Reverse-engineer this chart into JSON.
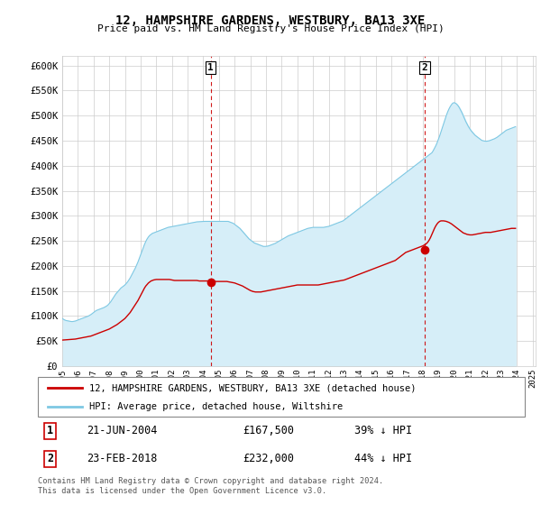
{
  "title": "12, HAMPSHIRE GARDENS, WESTBURY, BA13 3XE",
  "subtitle": "Price paid vs. HM Land Registry's House Price Index (HPI)",
  "ylim": [
    0,
    620000
  ],
  "yticks": [
    0,
    50000,
    100000,
    150000,
    200000,
    250000,
    300000,
    350000,
    400000,
    450000,
    500000,
    550000,
    600000
  ],
  "hpi_color": "#7ec8e3",
  "hpi_fill_color": "#d6eef8",
  "price_color": "#cc0000",
  "marker_color": "#cc0000",
  "grid_color": "#cccccc",
  "background_color": "#ffffff",
  "legend_label_price": "12, HAMPSHIRE GARDENS, WESTBURY, BA13 3XE (detached house)",
  "legend_label_hpi": "HPI: Average price, detached house, Wiltshire",
  "transaction1_date": "21-JUN-2004",
  "transaction1_price": "£167,500",
  "transaction1_hpi": "39% ↓ HPI",
  "transaction2_date": "23-FEB-2018",
  "transaction2_price": "£232,000",
  "transaction2_hpi": "44% ↓ HPI",
  "footer": "Contains HM Land Registry data © Crown copyright and database right 2024.\nThis data is licensed under the Open Government Licence v3.0.",
  "transaction1_year": 2004.47,
  "transaction2_year": 2018.12,
  "transaction1_price_val": 167500,
  "transaction2_price_val": 232000,
  "hpi_monthly": [
    95000,
    93500,
    92000,
    91000,
    90500,
    90000,
    89500,
    89000,
    89000,
    89500,
    90000,
    91000,
    92000,
    93000,
    94000,
    95000,
    96000,
    97000,
    98000,
    99000,
    100000,
    101500,
    103000,
    105000,
    107000,
    109000,
    111000,
    112000,
    113000,
    114000,
    115000,
    116000,
    117000,
    118500,
    120000,
    122000,
    125000,
    128000,
    132000,
    136000,
    140000,
    144000,
    147000,
    150000,
    153000,
    156000,
    158000,
    160000,
    162000,
    165000,
    168000,
    172000,
    176000,
    181000,
    186000,
    191000,
    196000,
    202000,
    208000,
    215000,
    222000,
    229000,
    236000,
    243000,
    249000,
    254000,
    258000,
    261000,
    263000,
    265000,
    266000,
    267000,
    268000,
    269000,
    270000,
    271000,
    272000,
    273000,
    274000,
    275000,
    276000,
    277000,
    277500,
    278000,
    278500,
    279000,
    279500,
    280000,
    280500,
    281000,
    281500,
    282000,
    282500,
    283000,
    283500,
    284000,
    284500,
    285000,
    285500,
    286000,
    286500,
    287000,
    287500,
    288000,
    288200,
    288400,
    288600,
    288800,
    289000,
    289000,
    289000,
    289000,
    289000,
    289000,
    289000,
    289000,
    289000,
    289000,
    289000,
    289000,
    289000,
    289000,
    289000,
    289000,
    289000,
    289000,
    289000,
    289000,
    288000,
    287000,
    286000,
    285000,
    283000,
    281000,
    279000,
    277000,
    275000,
    272000,
    269000,
    266000,
    263000,
    260000,
    257000,
    254000,
    252000,
    250000,
    248000,
    246000,
    245000,
    244000,
    243000,
    242000,
    241000,
    240000,
    239000,
    239000,
    239000,
    239500,
    240000,
    241000,
    242000,
    243000,
    244000,
    245000,
    246500,
    248000,
    249500,
    251000,
    252500,
    254000,
    255500,
    257000,
    258500,
    260000,
    261000,
    262000,
    263000,
    264000,
    265000,
    266000,
    267000,
    268000,
    269000,
    270000,
    271000,
    272000,
    273000,
    274000,
    275000,
    275500,
    276000,
    276500,
    277000,
    277000,
    277000,
    277000,
    277000,
    277000,
    277000,
    277000,
    277000,
    277500,
    278000,
    278500,
    279000,
    280000,
    281000,
    282000,
    283000,
    284000,
    285000,
    286000,
    287000,
    288000,
    289000,
    290000,
    292000,
    294000,
    296000,
    298000,
    300000,
    302000,
    304000,
    306000,
    308000,
    310000,
    312000,
    314000,
    316000,
    318000,
    320000,
    322000,
    324000,
    326000,
    328000,
    330000,
    332000,
    334000,
    336000,
    338000,
    340000,
    342000,
    344000,
    346000,
    348000,
    350000,
    352000,
    354000,
    356000,
    358000,
    360000,
    362000,
    364000,
    366000,
    368000,
    370000,
    372000,
    374000,
    376000,
    378000,
    380000,
    382000,
    384000,
    386000,
    388000,
    390000,
    392000,
    394000,
    396000,
    398000,
    400000,
    402000,
    404000,
    406000,
    408000,
    410000,
    412000,
    414000,
    416000,
    418000,
    420000,
    422000,
    424000,
    426000,
    430000,
    435000,
    440000,
    446000,
    453000,
    460000,
    468000,
    476000,
    484000,
    492000,
    500000,
    507000,
    513000,
    518000,
    522000,
    525000,
    526000,
    525000,
    523000,
    520000,
    516000,
    511000,
    506000,
    500000,
    494000,
    488000,
    483000,
    478000,
    474000,
    470000,
    467000,
    464000,
    461000,
    459000,
    457000,
    455000,
    453000,
    451000,
    450000,
    449500,
    449000,
    449000,
    449500,
    450000,
    451000,
    452000,
    453000,
    454000,
    455500,
    457000,
    459000,
    461000,
    463000,
    465000,
    467000,
    469000,
    471000,
    472000,
    473000,
    474000,
    475000,
    476000,
    477000,
    478000
  ],
  "price_monthly": [
    52000,
    52200,
    52400,
    52600,
    52800,
    53000,
    53200,
    53400,
    53600,
    53800,
    54000,
    54500,
    55000,
    55500,
    56000,
    56500,
    57000,
    57500,
    58000,
    58500,
    59000,
    59500,
    60000,
    61000,
    62000,
    63000,
    64000,
    65000,
    66000,
    67000,
    68000,
    69000,
    70000,
    71000,
    72000,
    73000,
    74000,
    75500,
    77000,
    78500,
    80000,
    81500,
    83000,
    85000,
    87000,
    89000,
    91000,
    93000,
    95000,
    98000,
    101000,
    104000,
    107000,
    111000,
    115000,
    119000,
    123000,
    127000,
    131000,
    136000,
    141000,
    146000,
    151000,
    156000,
    160000,
    163000,
    166000,
    168000,
    170000,
    171000,
    172000,
    172500,
    173000,
    173000,
    173000,
    173000,
    173000,
    173000,
    173000,
    173000,
    173000,
    173000,
    173000,
    172500,
    172000,
    171500,
    171000,
    171000,
    171000,
    171000,
    171000,
    171000,
    171000,
    171000,
    171000,
    171000,
    171000,
    171000,
    171000,
    171000,
    171000,
    171000,
    171000,
    171000,
    170500,
    170000,
    170000,
    170000,
    170000,
    170000,
    170000,
    170000,
    170000,
    170000,
    170000,
    169500,
    169000,
    169000,
    169000,
    169000,
    169000,
    169000,
    169000,
    169000,
    169000,
    169000,
    169000,
    168500,
    168000,
    167500,
    167000,
    166500,
    166000,
    165000,
    164000,
    163000,
    162000,
    161000,
    160000,
    158500,
    157000,
    155500,
    154000,
    152500,
    151000,
    150000,
    149000,
    148500,
    148000,
    148000,
    148000,
    148000,
    148000,
    148500,
    149000,
    149500,
    150000,
    150500,
    151000,
    151500,
    152000,
    152500,
    153000,
    153500,
    154000,
    154500,
    155000,
    155500,
    156000,
    156500,
    157000,
    157500,
    158000,
    158500,
    159000,
    159500,
    160000,
    160500,
    161000,
    161500,
    162000,
    162000,
    162000,
    162000,
    162000,
    162000,
    162000,
    162000,
    162000,
    162000,
    162000,
    162000,
    162000,
    162000,
    162000,
    162000,
    162000,
    162500,
    163000,
    163500,
    164000,
    164500,
    165000,
    165500,
    166000,
    166500,
    167000,
    167500,
    168000,
    168500,
    169000,
    169500,
    170000,
    170500,
    171000,
    171500,
    172000,
    173000,
    174000,
    175000,
    176000,
    177000,
    178000,
    179000,
    180000,
    181000,
    182000,
    183000,
    184000,
    185000,
    186000,
    187000,
    188000,
    189000,
    190000,
    191000,
    192000,
    193000,
    194000,
    195000,
    196000,
    197000,
    198000,
    199000,
    200000,
    201000,
    202000,
    203000,
    204000,
    205000,
    206000,
    207000,
    208000,
    209000,
    210000,
    211000,
    213000,
    215000,
    217000,
    219000,
    221000,
    223000,
    225000,
    227000,
    228000,
    229000,
    230000,
    231000,
    232000,
    233000,
    234000,
    235000,
    236000,
    237000,
    238000,
    239000,
    240000,
    241500,
    243000,
    245000,
    248000,
    252000,
    257000,
    263000,
    269000,
    275000,
    280000,
    284000,
    287000,
    289000,
    290000,
    290000,
    290000,
    289500,
    289000,
    288000,
    287000,
    285500,
    284000,
    282000,
    280000,
    278000,
    276000,
    274000,
    272000,
    270000,
    268000,
    266000,
    265000,
    264000,
    263000,
    262500,
    262000,
    262000,
    262000,
    262500,
    263000,
    263500,
    264000,
    264500,
    265000,
    265500,
    266000,
    266500,
    267000,
    267000,
    267000,
    267000,
    267000,
    267500,
    268000,
    268500,
    269000,
    269500,
    270000,
    270500,
    271000,
    271500,
    272000,
    272500,
    273000,
    273500,
    274000,
    274500,
    275000,
    275000,
    275000,
    275000
  ],
  "start_year": 1995.0,
  "month_step": 0.08333,
  "xtick_years": [
    1995,
    1996,
    1997,
    1998,
    1999,
    2000,
    2001,
    2002,
    2003,
    2004,
    2005,
    2006,
    2007,
    2008,
    2009,
    2010,
    2011,
    2012,
    2013,
    2014,
    2015,
    2016,
    2017,
    2018,
    2019,
    2020,
    2021,
    2022,
    2023,
    2024,
    2025
  ]
}
